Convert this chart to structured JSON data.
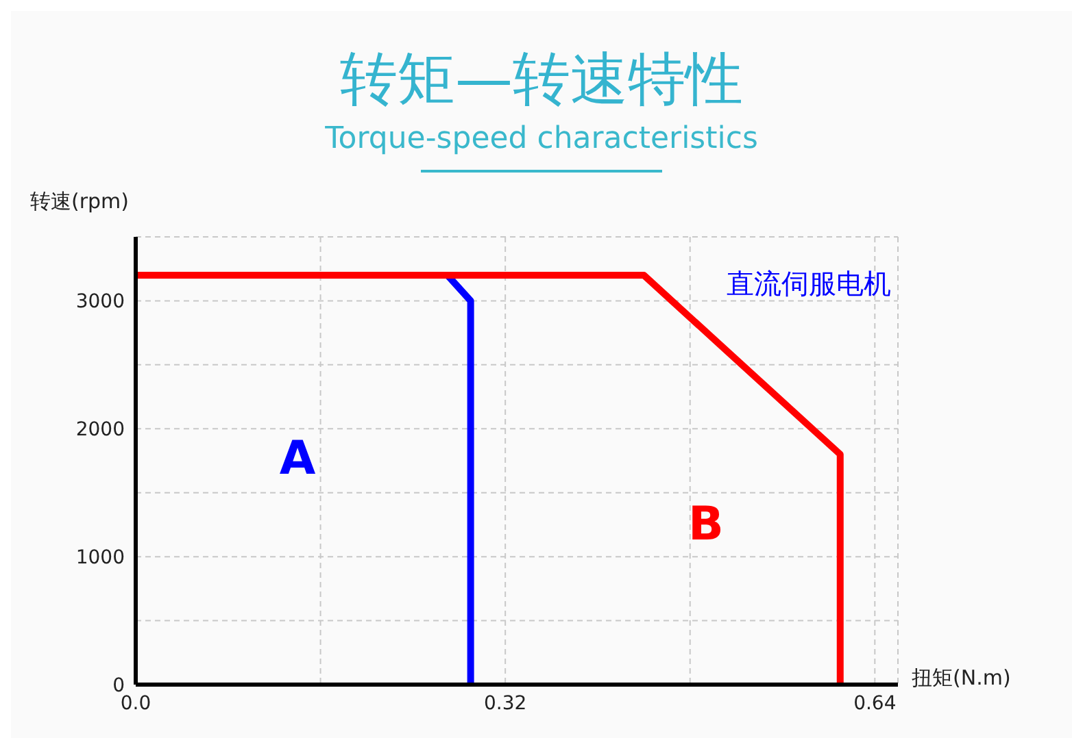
{
  "chart_data": {
    "type": "line",
    "title": "转矩—转速特性",
    "subtitle": "Torque-speed characteristics",
    "xlabel": "扭矩(N.m)",
    "ylabel": "转速(rpm)",
    "series": [
      {
        "name": "A",
        "color": "#0000ff",
        "x": [
          0.27,
          0.29,
          0.29
        ],
        "values": [
          3200,
          3000,
          0
        ]
      },
      {
        "name": "B",
        "color": "#ff0000",
        "x": [
          0,
          0.44,
          0.61,
          0.61
        ],
        "values": [
          3200,
          3200,
          1800,
          0
        ]
      }
    ],
    "annotations": [
      "直流伺服电机"
    ],
    "xlim": [
      0,
      0.66
    ],
    "xticks": [
      {
        "value": 0,
        "label": "0.0"
      },
      {
        "value": 0.16,
        "label": null
      },
      0.32,
      {
        "value": 0.48,
        "label": null
      },
      0.64
    ],
    "ylim": [
      0,
      3500
    ],
    "yticks": [
      0,
      {
        "value": 500,
        "label": null
      },
      1000,
      {
        "value": 1500,
        "label": null
      },
      2000,
      {
        "value": 2500,
        "label": null
      },
      3000,
      {
        "value": 3500,
        "label": null
      }
    ],
    "grid": true,
    "line_style": "solid",
    "marker": "none"
  }
}
